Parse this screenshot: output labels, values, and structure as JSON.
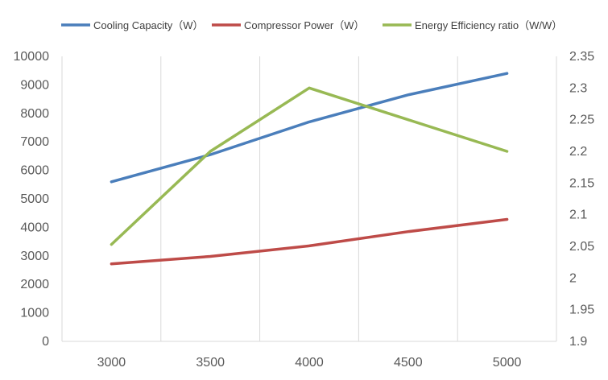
{
  "chart_data": {
    "type": "line",
    "x": [
      3000,
      3500,
      4000,
      4500,
      5000
    ],
    "x_tick_labels": [
      "3000",
      "3500",
      "4000",
      "4500",
      "5000"
    ],
    "y_left": {
      "ylim": [
        0,
        10000
      ],
      "ticks": [
        "0",
        "1000",
        "2000",
        "3000",
        "4000",
        "5000",
        "6000",
        "7000",
        "8000",
        "9000",
        "10000"
      ]
    },
    "y_right": {
      "ylim": [
        1.9,
        2.35
      ],
      "ticks": [
        "1.9",
        "1.95",
        "2",
        "2.05",
        "2.1",
        "2.15",
        "2.2",
        "2.25",
        "2.3",
        "2.35"
      ]
    },
    "legend_position": "top",
    "grid": "vertical",
    "series": [
      {
        "name": "Cooling Capacity（W）",
        "axis": "left",
        "color": "#4a7ebb",
        "values": [
          5600,
          6550,
          7700,
          8650,
          9400
        ]
      },
      {
        "name": "Compressor Power（W）",
        "axis": "left",
        "color": "#be4b48",
        "values": [
          2720,
          2980,
          3350,
          3850,
          4280
        ]
      },
      {
        "name": "Energy Efficiency ratio（W/W）",
        "axis": "right",
        "color": "#98b954",
        "values": [
          2.053,
          2.2,
          2.3,
          2.25,
          2.2
        ]
      }
    ]
  }
}
